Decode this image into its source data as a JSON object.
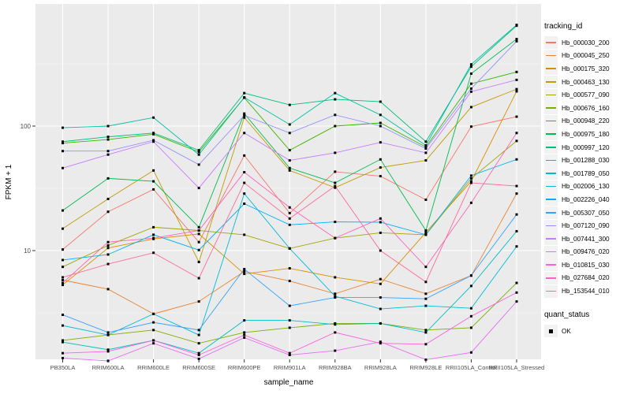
{
  "chart_data": {
    "type": "line",
    "title": "",
    "xlabel": "sample_name",
    "ylabel": "FPKM + 1",
    "y_scale": "log10",
    "y_ticks": [
      10,
      100
    ],
    "y_tick_labels": [
      "10",
      "100"
    ],
    "y_minor_ticks": [
      3.1623,
      31.623,
      316.23
    ],
    "ylim": [
      1.3,
      900
    ],
    "grid": true,
    "legend_position": "right",
    "marker": "filled-square",
    "marker_color": "#000000",
    "categories": [
      "PB350LA",
      "RRIM600LA",
      "RRIM600LE",
      "RRIM600SE",
      "RRIM600PE",
      "RRIM901LA",
      "RRIM928BA",
      "RRIM928LA",
      "RRIM928LE",
      "RRII105LA_Control",
      "RRII105LA_Stressed"
    ],
    "series": [
      {
        "name": "Hb_000030_200",
        "color": "#F8766D",
        "values": [
          10.2,
          20.5,
          31,
          11.7,
          58,
          20,
          43,
          39.6,
          25.6,
          99,
          119
        ]
      },
      {
        "name": "Hb_000045_250",
        "color": "#EA8331",
        "values": [
          5.8,
          4.9,
          3.1,
          3.9,
          6.8,
          5.7,
          4.5,
          5.9,
          4.5,
          6.3,
          28.7
        ]
      },
      {
        "name": "Hb_000175_320",
        "color": "#D89000",
        "values": [
          5.3,
          10.5,
          12.4,
          13.6,
          6.5,
          7.2,
          6.1,
          5.4,
          14,
          36,
          190
        ]
      },
      {
        "name": "Hb_000463_130",
        "color": "#C09B00",
        "values": [
          15,
          26,
          44,
          8.1,
          117,
          44,
          32,
          46.5,
          53,
          142,
          198
        ]
      },
      {
        "name": "Hb_000577_090",
        "color": "#A3A500",
        "values": [
          7.4,
          11,
          15.4,
          14.5,
          13.4,
          10.4,
          12.6,
          13.9,
          13.4,
          38,
          76
        ]
      },
      {
        "name": "Hb_000676_160",
        "color": "#7CAE00",
        "values": [
          1.9,
          2.1,
          2.3,
          1.8,
          2.2,
          2.4,
          2.6,
          2.6,
          2.3,
          2.4,
          5.5
        ]
      },
      {
        "name": "Hb_000948_220",
        "color": "#39B600",
        "values": [
          73,
          78,
          86,
          62,
          169,
          64,
          100,
          106,
          68,
          219,
          272
        ]
      },
      {
        "name": "Hb_000975_180",
        "color": "#00BB4E",
        "values": [
          21,
          38,
          36,
          15.4,
          126,
          46,
          35,
          54,
          14.5,
          264,
          500
        ]
      },
      {
        "name": "Hb_000997_120",
        "color": "#00BF7D",
        "values": [
          75,
          82,
          88,
          64,
          184,
          148,
          164,
          157,
          75,
          300,
          640
        ]
      },
      {
        "name": "Hb_001288_030",
        "color": "#00C1A3",
        "values": [
          97,
          100,
          117,
          59,
          170,
          103,
          184,
          123,
          70,
          313,
          650
        ]
      },
      {
        "name": "Hb_001789_050",
        "color": "#00BFC4",
        "values": [
          1.84,
          1.6,
          1.9,
          1.5,
          2.75,
          2.75,
          2.55,
          2.6,
          2.2,
          5.2,
          14.3
        ]
      },
      {
        "name": "Hb_002006_130",
        "color": "#00BBDA",
        "values": [
          2.5,
          2.1,
          3.1,
          2.1,
          28.7,
          10.4,
          4.3,
          3.4,
          3.6,
          3.44,
          10.8
        ]
      },
      {
        "name": "Hb_002226_040",
        "color": "#00B0F6",
        "values": [
          8.4,
          9.3,
          13.4,
          10.1,
          23.8,
          16.1,
          17,
          16.9,
          13.4,
          40,
          54
        ]
      },
      {
        "name": "Hb_005307_050",
        "color": "#35A2FF",
        "values": [
          3.05,
          2.2,
          2.65,
          2.3,
          7.1,
          3.6,
          4.2,
          4.2,
          4.1,
          6.3,
          19.5
        ]
      },
      {
        "name": "Hb_007120_090",
        "color": "#9590FF",
        "values": [
          63,
          63,
          77,
          49,
          122,
          88,
          123,
          100,
          66,
          200,
          480
        ]
      },
      {
        "name": "Hb_007441_300",
        "color": "#C77CFF",
        "values": [
          46,
          59,
          75,
          31.8,
          88,
          53,
          61,
          74,
          61,
          189,
          235
        ]
      },
      {
        "name": "Hb_009476_020",
        "color": "#E76BF3",
        "values": [
          1.37,
          1.3,
          1.8,
          1.35,
          2.0,
          1.45,
          1.57,
          1.85,
          1.33,
          1.52,
          3.9
        ]
      },
      {
        "name": "Hb_010815_030",
        "color": "#FA62DB",
        "values": [
          1.5,
          1.55,
          1.9,
          1.45,
          2.1,
          1.5,
          2.2,
          1.8,
          1.77,
          2.97,
          4.6
        ]
      },
      {
        "name": "Hb_027684_020",
        "color": "#FF62BC",
        "values": [
          5.5,
          11.7,
          12.6,
          14.5,
          42.6,
          22.2,
          12.6,
          18.1,
          7.4,
          24.2,
          88
        ]
      },
      {
        "name": "Hb_153544_010",
        "color": "#FF6A98",
        "values": [
          6.1,
          7.8,
          9.6,
          6.0,
          35,
          18.1,
          33,
          10,
          5.6,
          35,
          33
        ]
      }
    ],
    "legend": {
      "color_title": "tracking_id",
      "shape_title": "quant_status",
      "shape_entries": [
        {
          "label": "OK",
          "marker": "filled-square"
        }
      ]
    }
  },
  "colors": {
    "panel_bg": "#EBEBEB",
    "grid_major": "#FFFFFF",
    "grid_minor": "#F5F5F5",
    "axis_text": "#4D4D4D",
    "tick_mark": "#333333",
    "legend_key_bg": "#F2F2F2",
    "text": "#000000",
    "background": "#FFFFFF"
  }
}
